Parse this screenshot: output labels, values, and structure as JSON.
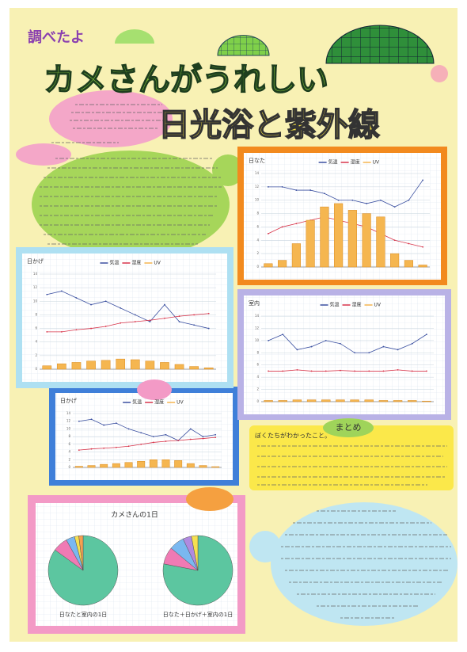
{
  "poster": {
    "tag": "調べたよ",
    "title": "カメさんがうれしい",
    "subtitle": "日光浴と紫外線",
    "summary_heading": "まとめ",
    "summary_lead": "ぼくたちがわかったこと。",
    "pie_heading": "カメさんの1日"
  },
  "chart_data": [
    {
      "type": "combo",
      "title": "日なた",
      "categories": [
        null,
        null,
        null,
        null,
        null,
        null,
        null,
        null,
        null,
        null,
        null,
        null
      ],
      "ylim": [
        0,
        14
      ],
      "yticks": [
        0,
        2,
        4,
        6,
        8,
        10,
        12,
        14
      ],
      "series": [
        {
          "name": "気温",
          "color": "#3a4fa0",
          "kind": "line",
          "values": [
            12,
            12,
            11.5,
            11.5,
            11,
            10,
            10,
            9.5,
            10,
            9,
            10,
            13
          ]
        },
        {
          "name": "湿度",
          "color": "#d8344a",
          "kind": "line",
          "values": [
            5,
            6,
            6.5,
            7,
            7.5,
            7,
            6.5,
            6,
            5,
            4,
            3.5,
            3
          ]
        },
        {
          "name": "UV",
          "color": "#f5b650",
          "kind": "bar",
          "values": [
            0.5,
            1,
            3.5,
            7,
            9,
            9.5,
            8.5,
            8,
            7.5,
            2,
            1,
            0.3
          ]
        }
      ]
    },
    {
      "type": "combo",
      "title": "日かげ",
      "categories": [
        null,
        null,
        null,
        null,
        null,
        null,
        null,
        null,
        null,
        null,
        null,
        null
      ],
      "ylim": [
        0,
        14
      ],
      "yticks": [
        0,
        2,
        4,
        6,
        8,
        10,
        12,
        14
      ],
      "series": [
        {
          "name": "気温",
          "color": "#3a4fa0",
          "kind": "line",
          "values": [
            11,
            11.5,
            10.5,
            9.5,
            10,
            9,
            8,
            7,
            9.5,
            7,
            6.5,
            6
          ]
        },
        {
          "name": "湿度",
          "color": "#d8344a",
          "kind": "line",
          "values": [
            5.5,
            5.5,
            5.8,
            6,
            6.3,
            6.8,
            7,
            7.2,
            7.5,
            7.8,
            8,
            8.2
          ]
        },
        {
          "name": "UV",
          "color": "#f5b650",
          "kind": "bar",
          "values": [
            0.5,
            0.8,
            1,
            1.2,
            1.3,
            1.5,
            1.4,
            1.2,
            1,
            0.7,
            0.4,
            0.2
          ]
        }
      ]
    },
    {
      "type": "combo",
      "title": "室内",
      "categories": [
        null,
        null,
        null,
        null,
        null,
        null,
        null,
        null,
        null,
        null,
        null,
        null
      ],
      "ylim": [
        0,
        14
      ],
      "yticks": [
        0,
        2,
        4,
        6,
        8,
        10,
        12,
        14
      ],
      "series": [
        {
          "name": "気温",
          "color": "#3a4fa0",
          "kind": "line",
          "values": [
            10,
            11,
            8.5,
            9,
            10,
            9.5,
            8,
            8,
            9,
            8.5,
            9.5,
            11
          ]
        },
        {
          "name": "湿度",
          "color": "#d8344a",
          "kind": "line",
          "values": [
            5,
            5,
            5.2,
            5,
            5,
            5.1,
            5,
            5,
            5,
            5.2,
            5,
            5
          ]
        },
        {
          "name": "UV",
          "color": "#f5b650",
          "kind": "bar",
          "values": [
            0.2,
            0.2,
            0.3,
            0.3,
            0.3,
            0.3,
            0.3,
            0.3,
            0.2,
            0.2,
            0.2,
            0.1
          ]
        }
      ]
    },
    {
      "type": "combo",
      "title": "日かげ",
      "categories": [
        null,
        null,
        null,
        null,
        null,
        null,
        null,
        null,
        null,
        null,
        null,
        null
      ],
      "ylim": [
        0,
        14
      ],
      "yticks": [
        0,
        2,
        4,
        6,
        8,
        10,
        12,
        14
      ],
      "series": [
        {
          "name": "気温",
          "color": "#3a4fa0",
          "kind": "line",
          "values": [
            12,
            12.5,
            11,
            11.5,
            10,
            9,
            8,
            8.5,
            7,
            10,
            8,
            8.5
          ]
        },
        {
          "name": "湿度",
          "color": "#d8344a",
          "kind": "line",
          "values": [
            4.5,
            4.8,
            5,
            5.2,
            5.5,
            6,
            6.5,
            6.8,
            7,
            7.3,
            7.5,
            7.8
          ]
        },
        {
          "name": "UV",
          "color": "#f5b650",
          "kind": "bar",
          "values": [
            0.3,
            0.5,
            0.8,
            1,
            1.3,
            1.6,
            2,
            2,
            1.8,
            1,
            0.5,
            0.2
          ]
        }
      ]
    },
    {
      "type": "pie",
      "title": "日なたと室内の1日",
      "values": [
        85,
        7,
        4,
        2,
        2
      ],
      "colors": [
        "#5cc6a0",
        "#f07ab4",
        "#7ab8f0",
        "#f5e050",
        "#f5a050"
      ]
    },
    {
      "type": "pie",
      "title": "日なた＋日かげ＋室内の1日",
      "values": [
        78,
        8,
        7,
        4,
        3
      ],
      "colors": [
        "#5cc6a0",
        "#f07ab4",
        "#7ab8f0",
        "#b08ae0",
        "#f5e050"
      ]
    }
  ]
}
